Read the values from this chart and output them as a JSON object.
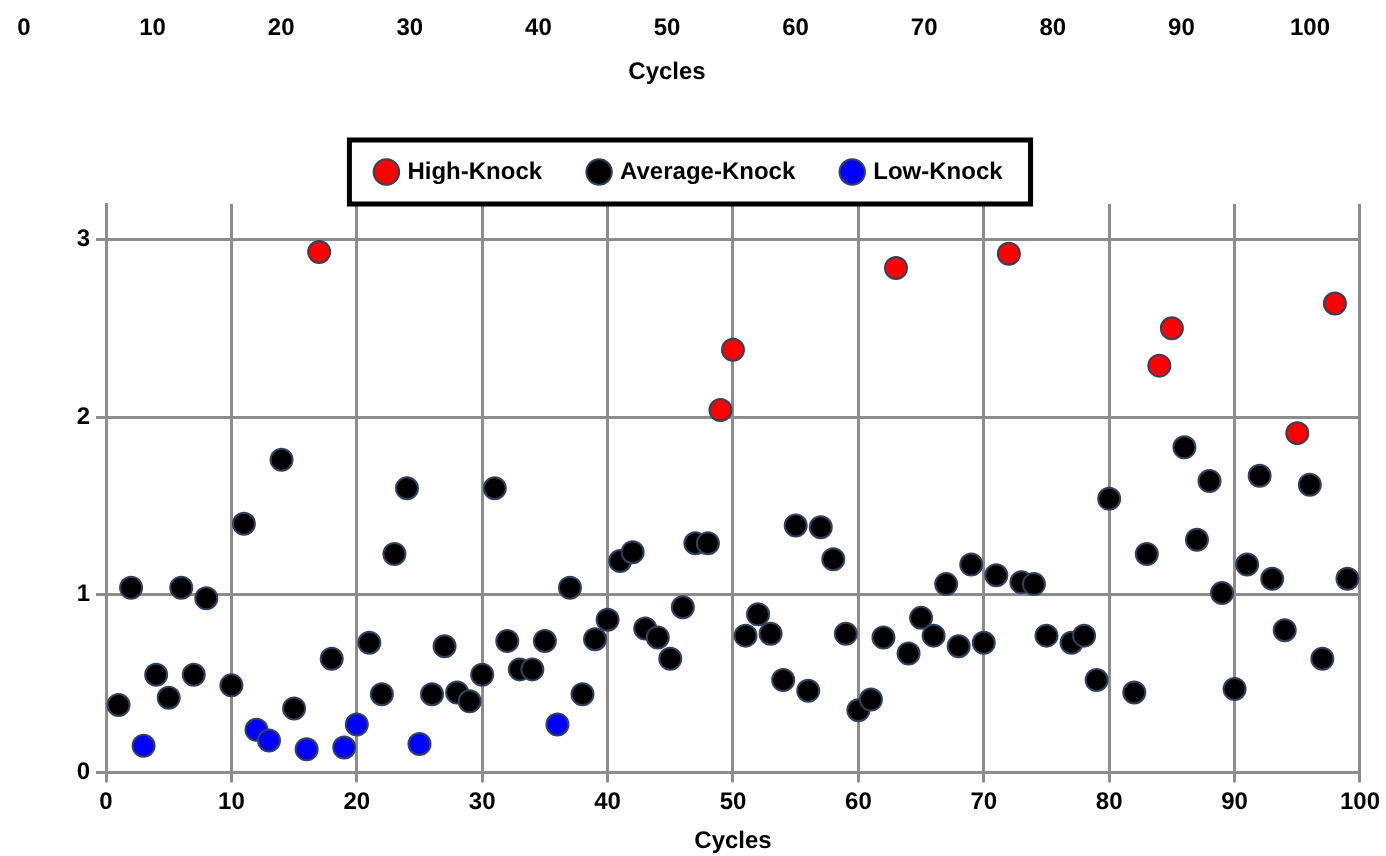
{
  "chart_data": [
    {
      "type": "scatter",
      "x2label": "Cycles",
      "x2lim": [
        0,
        100
      ],
      "x2ticks": [
        0,
        10,
        20,
        30,
        40,
        50,
        60,
        70,
        80,
        90,
        100
      ],
      "xlabel": "Cycles",
      "xlim": [
        0,
        100
      ],
      "xticks": [
        0,
        10,
        20,
        30,
        40,
        50,
        60,
        70,
        80,
        90,
        100
      ],
      "ylim": [
        0,
        3.2
      ],
      "yticks": [
        0,
        1,
        2,
        3
      ],
      "grid": true,
      "legend": "top",
      "marker": "circle",
      "series": [
        {
          "name": "High-Knock",
          "color": "#ff0000",
          "x": [
            17,
            49,
            50,
            63,
            72,
            84,
            85,
            95,
            98
          ],
          "values": [
            2.93,
            2.04,
            2.38,
            2.84,
            2.92,
            2.29,
            2.5,
            1.91,
            2.64
          ]
        },
        {
          "name": "Average-Knock",
          "color": "#000000",
          "x": [
            1,
            2,
            4,
            5,
            6,
            7,
            8,
            10,
            11,
            14,
            15,
            18,
            21,
            22,
            23,
            24,
            26,
            27,
            28,
            29,
            30,
            31,
            32,
            33,
            34,
            35,
            37,
            38,
            39,
            40,
            41,
            42,
            43,
            44,
            45,
            46,
            47,
            48,
            51,
            52,
            53,
            54,
            55,
            56,
            57,
            58,
            59,
            60,
            61,
            62,
            64,
            65,
            66,
            67,
            68,
            69,
            70,
            71,
            73,
            74,
            75,
            77,
            78,
            79,
            80,
            82,
            83,
            86,
            87,
            88,
            89,
            90,
            91,
            92,
            93,
            94,
            96,
            97,
            99
          ],
          "values": [
            0.38,
            1.04,
            0.55,
            0.42,
            1.04,
            0.55,
            0.98,
            0.49,
            1.4,
            1.76,
            0.36,
            0.64,
            0.73,
            0.44,
            1.23,
            1.6,
            0.44,
            0.71,
            0.45,
            0.4,
            0.55,
            1.6,
            0.74,
            0.58,
            0.58,
            0.74,
            1.04,
            0.44,
            0.75,
            0.86,
            1.19,
            1.24,
            0.81,
            0.76,
            0.64,
            0.93,
            1.29,
            1.29,
            0.77,
            0.89,
            0.78,
            0.52,
            1.39,
            0.46,
            1.38,
            1.2,
            0.78,
            0.35,
            0.41,
            0.76,
            0.67,
            0.87,
            0.77,
            1.06,
            0.71,
            1.17,
            0.73,
            1.11,
            1.07,
            1.06,
            0.77,
            0.73,
            0.77,
            0.52,
            1.54,
            0.45,
            1.23,
            1.83,
            1.31,
            1.64,
            1.01,
            0.47,
            1.17,
            1.67,
            1.09,
            0.8,
            1.62,
            0.64,
            1.09
          ]
        },
        {
          "name": "Low-Knock",
          "color": "#0000ff",
          "x": [
            3,
            12,
            13,
            16,
            19,
            20,
            25,
            36
          ],
          "values": [
            0.15,
            0.24,
            0.18,
            0.13,
            0.14,
            0.27,
            0.16,
            0.27
          ]
        }
      ]
    }
  ]
}
